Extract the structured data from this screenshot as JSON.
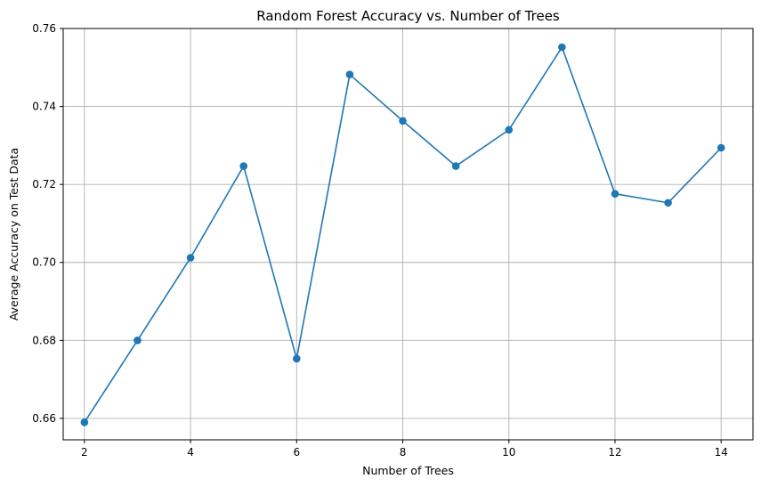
{
  "chart_data": {
    "type": "line",
    "title": "Random Forest Accuracy vs. Number of Trees",
    "xlabel": "Number of Trees",
    "ylabel": "Average Accuracy on Test Data",
    "x": [
      2,
      3,
      4,
      5,
      6,
      7,
      8,
      9,
      10,
      11,
      12,
      13,
      14
    ],
    "series": [
      {
        "values": [
          0.659,
          0.68,
          0.7012,
          0.7247,
          0.6753,
          0.7482,
          0.7363,
          0.7247,
          0.734,
          0.7552,
          0.7176,
          0.7153,
          0.7294
        ],
        "color": "#1f77b4",
        "marker": "circle"
      }
    ],
    "xlim": [
      1.6,
      14.6
    ],
    "ylim": [
      0.6545,
      0.76
    ],
    "xticks": [
      2,
      4,
      6,
      8,
      10,
      12,
      14
    ],
    "yticks": [
      0.66,
      0.68,
      0.7,
      0.72,
      0.74,
      0.76
    ],
    "xtick_labels": [
      "2",
      "4",
      "6",
      "8",
      "10",
      "12",
      "14"
    ],
    "ytick_labels": [
      "0.66",
      "0.68",
      "0.70",
      "0.72",
      "0.74",
      "0.76"
    ],
    "grid": true,
    "legend": false
  }
}
